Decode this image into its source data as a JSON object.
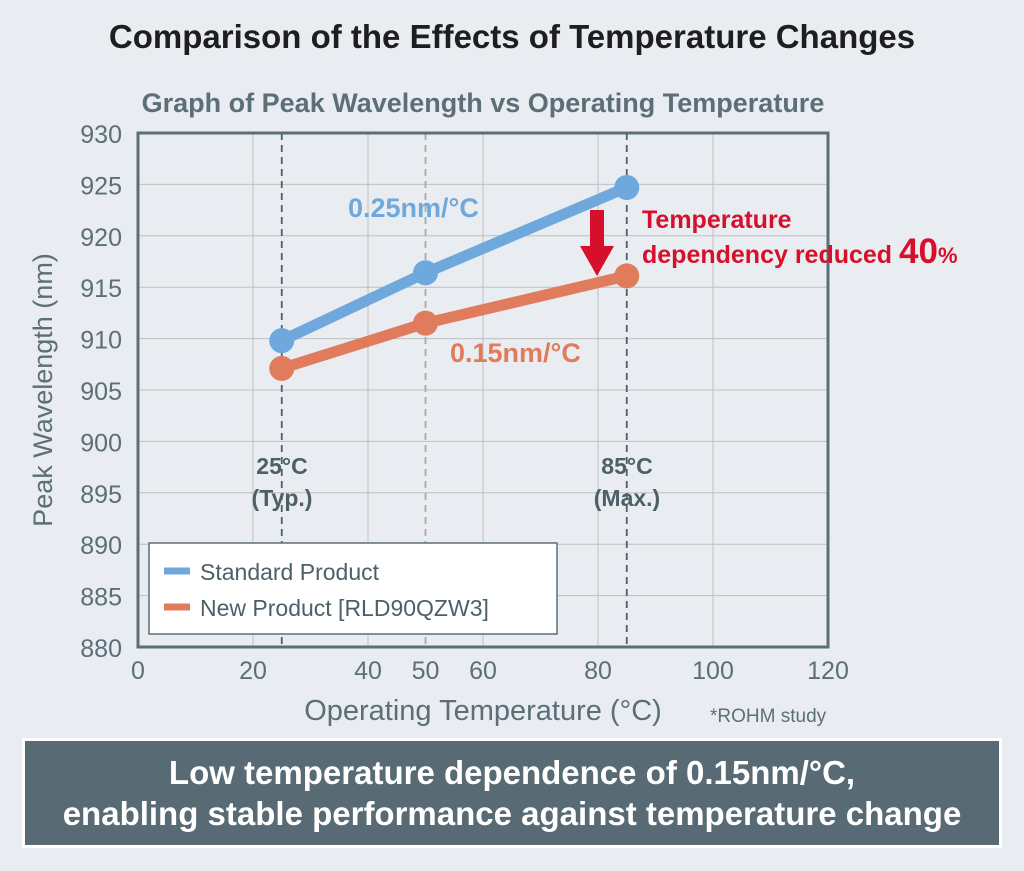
{
  "title": "Comparison of the Effects of Temperature Changes",
  "footer": {
    "line1": "Low temperature dependence of 0.15nm/°C,",
    "line2": "enabling stable performance against temperature change"
  },
  "colors": {
    "standard": "#6fa8dc",
    "new": "#e07b5b",
    "reduction": "#d6102b",
    "axis": "#5c6f78",
    "grid": "#bfbfbf"
  },
  "chart_data": {
    "type": "line",
    "title": "Graph of Peak Wavelength vs Operating Temperature",
    "xlabel": "Operating Temperature (°C)",
    "ylabel": "Peak Wavelength (nm)",
    "xlim": [
      0,
      120
    ],
    "ylim": [
      880,
      930
    ],
    "xticks": [
      0,
      20,
      40,
      50,
      60,
      80,
      100,
      120
    ],
    "yticks": [
      880,
      885,
      890,
      895,
      900,
      905,
      910,
      915,
      920,
      925,
      930
    ],
    "grid": true,
    "legend_position": "bottom-left",
    "series": [
      {
        "name": "Standard Product",
        "key": "standard",
        "x": [
          25,
          50,
          85
        ],
        "y": [
          909.8,
          916.4,
          924.7
        ]
      },
      {
        "name": "New Product [RLD90QZW3]",
        "key": "new",
        "x": [
          25,
          50,
          85
        ],
        "y": [
          907.1,
          911.5,
          916.1
        ]
      }
    ],
    "annotations": {
      "standard_slope": "0.25nm/°C",
      "new_slope": "0.15nm/°C",
      "reduction_line1": "Temperature",
      "reduction_line2": "dependency reduced ",
      "reduction_value": "40",
      "reduction_unit": "%",
      "typ_temp": "25°C",
      "typ_label": "(Typ.)",
      "max_temp": "85°C",
      "max_label": "(Max.)",
      "source_note": "*ROHM study"
    }
  }
}
